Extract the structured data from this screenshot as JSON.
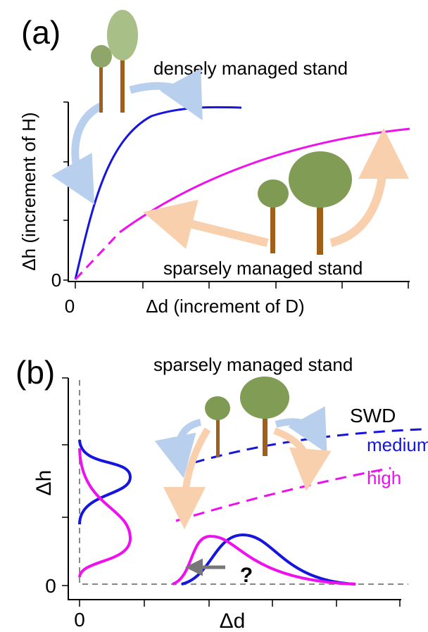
{
  "panel_a": {
    "label": "(a)",
    "top_label": "densely managed stand",
    "bottom_label": "sparsely managed stand",
    "y_label": "Δh (increment of H)",
    "x_label": "Δd (increment of D)",
    "y_origin": "0",
    "x_origin": "0"
  },
  "panel_b": {
    "label": "(b)",
    "title": "sparsely managed stand",
    "legend_title": "SWD",
    "legend_medium": "medium",
    "legend_high": "high",
    "y_label": "Δh",
    "x_label": "Δd",
    "y_origin": "0",
    "x_origin": "0",
    "question": "?"
  }
}
